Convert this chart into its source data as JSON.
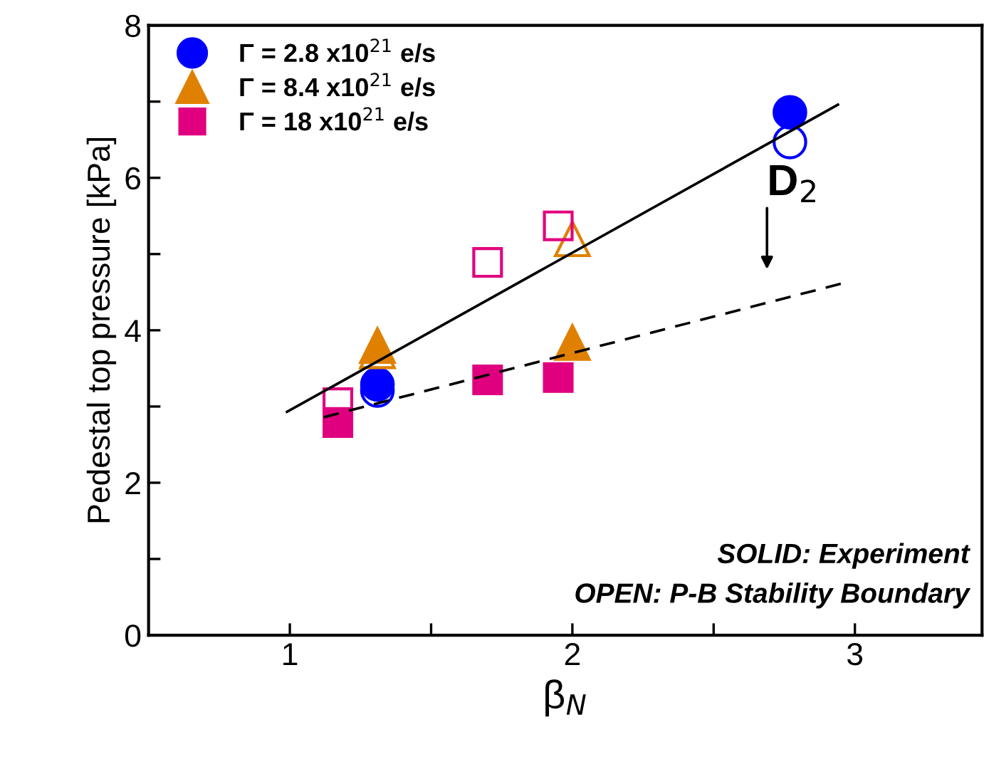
{
  "chart_data": {
    "type": "scatter",
    "xlabel": "β$_{N}$",
    "ylabel": "Pedestal top pressure [kPa]",
    "xlim": [
      0.5,
      3.45
    ],
    "xticks": [
      1,
      {
        "value": 1.5,
        "label": null
      },
      2,
      {
        "value": 2.5,
        "label": null
      },
      3
    ],
    "ylim": [
      0,
      8
    ],
    "yticks": [
      0,
      {
        "value": 1,
        "label": null
      },
      2,
      {
        "value": 3,
        "label": null
      },
      4,
      {
        "value": 5,
        "label": null
      },
      6,
      {
        "value": 7,
        "label": null
      },
      8
    ],
    "grid": false,
    "legend": "top left",
    "series": [
      {
        "name": "Γ = 2.8 x10$^{21}$ e/s",
        "color": "#0000ff",
        "marker": "circle",
        "x": [
          1.31,
          2.77
        ],
        "values": [
          3.29,
          6.86
        ]
      },
      {
        "name": "Γ = 8.4 x10$^{21}$ e/s",
        "color": "#e08000",
        "marker": "triangle",
        "x": [
          1.31,
          2.0
        ],
        "values": [
          3.8,
          3.84
        ]
      },
      {
        "name": "Γ = 18 x10$^{21}$ e/s",
        "color": "#e0007f",
        "marker": "square",
        "x": [
          1.17,
          1.7,
          1.95
        ],
        "values": [
          2.79,
          3.35,
          3.38
        ]
      },
      {
        "color": "#0000ff",
        "marker": "circle",
        "x": [
          1.31,
          2.77
        ],
        "values": [
          3.21,
          6.47
        ]
      },
      {
        "color": "#e08000",
        "marker": "triangle",
        "x": [
          1.31,
          2.0
        ],
        "values": [
          3.73,
          5.2
        ]
      },
      {
        "color": "#e0007f",
        "marker": "square",
        "x": [
          1.17,
          1.7,
          1.95
        ],
        "values": [
          3.05,
          4.89,
          5.37
        ]
      },
      {
        "type": "line",
        "color": "#000000",
        "line_style": "solid",
        "marker": "none",
        "x": [
          0.99,
          2.94
        ],
        "values": [
          2.93,
          6.96
        ]
      },
      {
        "type": "line",
        "color": "#000000",
        "line_style": "dashed",
        "marker": "none",
        "x": [
          1.12,
          2.95
        ],
        "values": [
          2.86,
          4.61
        ]
      }
    ],
    "annotations": [
      "D$_{2}$",
      "SOLID: Experiment",
      "OPEN: P-B Stability Boundary"
    ]
  }
}
